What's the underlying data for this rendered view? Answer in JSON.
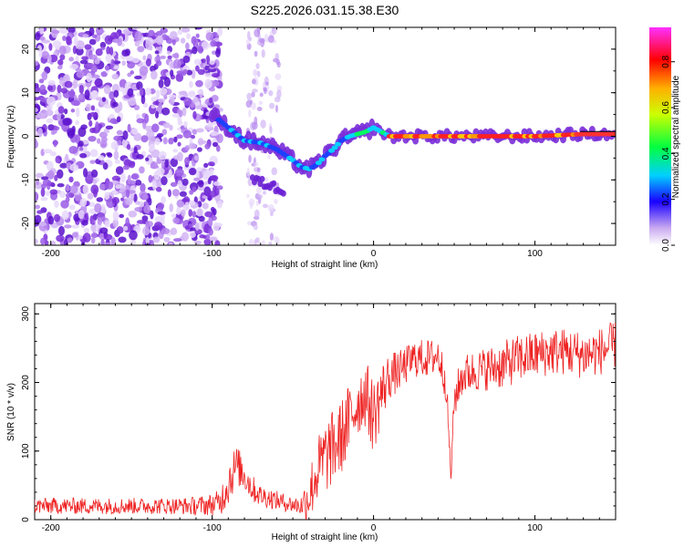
{
  "chart_data": [
    {
      "type": "heatmap",
      "title": "S225.2026.031.15.38.E30",
      "xlabel": "Height of straight line (km)",
      "ylabel": "Frequency (Hz)",
      "xlim": [
        -210,
        150
      ],
      "ylim": [
        -25,
        25
      ],
      "xticks": [
        -200,
        -100,
        0,
        100
      ],
      "yticks": [
        -20,
        -10,
        0,
        10,
        20
      ],
      "colorbar": {
        "label": "Normalized spectral amplitude",
        "range": [
          0,
          0.95
        ],
        "ticks": [
          0.0,
          0.2,
          0.4,
          0.6,
          0.8
        ]
      },
      "ridge": {
        "x": [
          -100,
          -90,
          -80,
          -70,
          -60,
          -50,
          -45,
          -40,
          -35,
          -30,
          -25,
          -20,
          -15,
          -10,
          -5,
          0,
          5,
          10,
          30,
          60,
          100,
          130,
          150
        ],
        "y": [
          5,
          2,
          -1,
          -1.5,
          -3,
          -5.5,
          -7,
          -7.5,
          -6.5,
          -4.5,
          -3,
          -1,
          0,
          0.5,
          1,
          2,
          1,
          0,
          0,
          0,
          0,
          0.5,
          0.5
        ]
      },
      "noise_region_x": [
        -210,
        -95
      ]
    },
    {
      "type": "line",
      "title": "",
      "xlabel": "Height of straight line (km)",
      "ylabel": "SNR (10 * v/v)",
      "xlim": [
        -210,
        150
      ],
      "ylim": [
        0,
        315
      ],
      "xticks": [
        -200,
        -100,
        0,
        100
      ],
      "yticks": [
        0,
        100,
        200,
        300
      ],
      "series": [
        {
          "name": "SNR",
          "color": "#ee2222",
          "x": [
            -210,
            -200,
            -180,
            -160,
            -140,
            -120,
            -110,
            -100,
            -95,
            -90,
            -85,
            -80,
            -75,
            -70,
            -65,
            -60,
            -55,
            -50,
            -45,
            -40,
            -35,
            -30,
            -25,
            -20,
            -15,
            -10,
            -5,
            0,
            5,
            10,
            15,
            20,
            25,
            30,
            35,
            40,
            45,
            48,
            50,
            55,
            60,
            70,
            80,
            90,
            100,
            110,
            120,
            130,
            140,
            150
          ],
          "y": [
            20,
            20,
            20,
            20,
            20,
            20,
            20,
            22,
            25,
            55,
            80,
            65,
            45,
            35,
            32,
            28,
            25,
            22,
            20,
            35,
            70,
            90,
            105,
            120,
            145,
            170,
            185,
            150,
            185,
            210,
            215,
            225,
            235,
            235,
            235,
            240,
            200,
            60,
            175,
            210,
            215,
            220,
            225,
            235,
            240,
            245,
            245,
            240,
            245,
            255
          ],
          "spread": [
            12,
            12,
            12,
            12,
            12,
            12,
            14,
            16,
            20,
            35,
            30,
            25,
            20,
            16,
            15,
            14,
            13,
            12,
            15,
            40,
            50,
            55,
            55,
            55,
            55,
            50,
            50,
            55,
            45,
            35,
            30,
            28,
            28,
            28,
            28,
            28,
            28,
            10,
            28,
            30,
            30,
            32,
            35,
            35,
            35,
            35,
            35,
            35,
            35,
            35
          ]
        }
      ]
    }
  ]
}
